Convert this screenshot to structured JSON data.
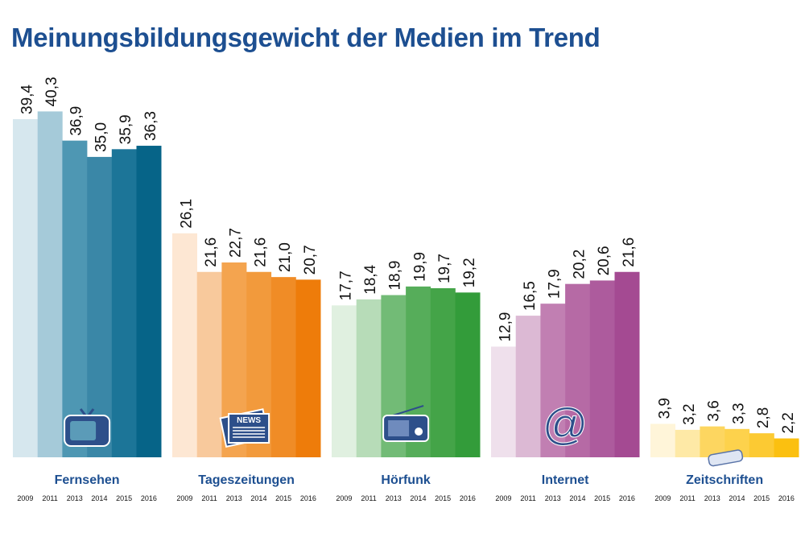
{
  "chart_data": {
    "type": "bar",
    "title": "Meinungsbildungsgewicht der Medien im Trend",
    "categories": [
      "2009",
      "2011",
      "2013",
      "2014",
      "2015",
      "2016"
    ],
    "groups": [
      {
        "name": "Fernsehen",
        "icon": "tv-icon",
        "values": [
          39.4,
          40.3,
          36.9,
          35.0,
          35.9,
          36.3
        ],
        "labels": [
          "39,4",
          "40,3",
          "36,9",
          "35,0",
          "35,9",
          "36,3"
        ],
        "colors": [
          "#d6e7ee",
          "#a5cad9",
          "#4e97b3",
          "#3a87a7",
          "#1c7598",
          "#066488"
        ]
      },
      {
        "name": "Tageszeitungen",
        "icon": "newspaper-icon",
        "values": [
          26.1,
          21.6,
          22.7,
          21.6,
          21.0,
          20.7
        ],
        "labels": [
          "26,1",
          "21,6",
          "22,7",
          "21,6",
          "21,0",
          "20,7"
        ],
        "colors": [
          "#fde7d3",
          "#f8c99c",
          "#f4a44f",
          "#f29a3c",
          "#f08c26",
          "#ee7c0a"
        ]
      },
      {
        "name": "Hörfunk",
        "icon": "radio-icon",
        "values": [
          17.7,
          18.4,
          18.9,
          19.9,
          19.7,
          19.2
        ],
        "labels": [
          "17,7",
          "18,4",
          "18,9",
          "19,9",
          "19,7",
          "19,2"
        ],
        "colors": [
          "#e0f0e0",
          "#b7dcb8",
          "#72bb76",
          "#56ad5a",
          "#44a448",
          "#339c3a"
        ]
      },
      {
        "name": "Internet",
        "icon": "at-sign-icon",
        "values": [
          12.9,
          16.5,
          17.9,
          20.2,
          20.6,
          21.6
        ],
        "labels": [
          "12,9",
          "16,5",
          "17,9",
          "20,2",
          "20,6",
          "21,6"
        ],
        "colors": [
          "#efe0ec",
          "#dcb9d4",
          "#c17fb2",
          "#b66aa5",
          "#ad5b9d",
          "#a44a92"
        ]
      },
      {
        "name": "Zeitschriften",
        "icon": "magazine-icon",
        "values": [
          3.9,
          3.2,
          3.6,
          3.3,
          2.8,
          2.2
        ],
        "labels": [
          "3,9",
          "3,2",
          "3,6",
          "3,3",
          "2,8",
          "2,2"
        ],
        "colors": [
          "#fff5d9",
          "#fee9a6",
          "#fdd660",
          "#fdd24c",
          "#fcca33",
          "#fbc010"
        ]
      }
    ],
    "ylim": [
      0,
      42
    ],
    "grid": false,
    "label_color": "#1d4f91"
  }
}
